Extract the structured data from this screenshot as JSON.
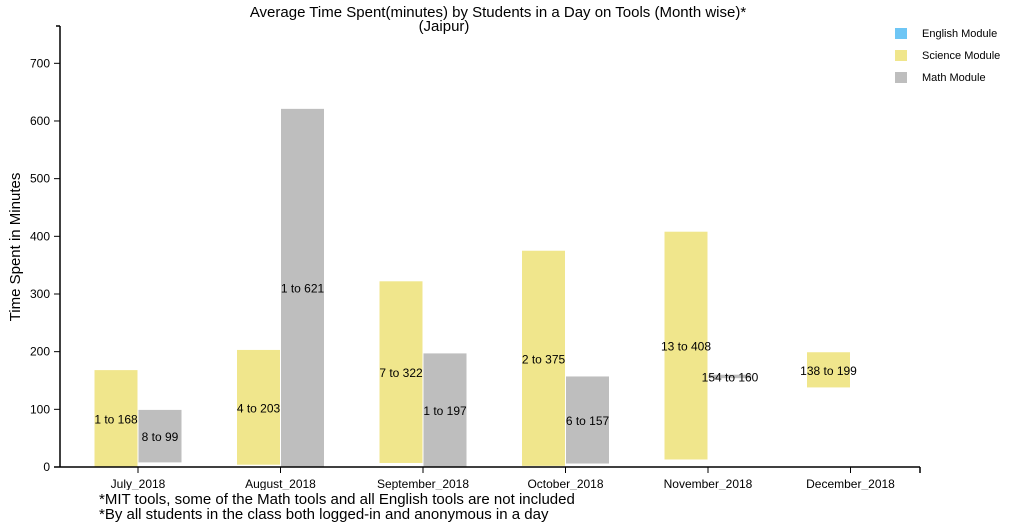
{
  "chart_data": {
    "type": "floating-bar",
    "title": "Average Time Spent(minutes) by Students in a Day on Tools (Month wise)*",
    "subtitle": "(Jaipur)",
    "ylabel": "Time Spent in Minutes",
    "xlabel": "",
    "ylim": [
      0,
      780
    ],
    "yticks": [
      0,
      100,
      200,
      300,
      400,
      500,
      600,
      700
    ],
    "grid": false,
    "legend_position": "top-right",
    "categories": [
      "July_2018",
      "August_2018",
      "September_2018",
      "October_2018",
      "November_2018",
      "December_2018"
    ],
    "series": [
      {
        "name": "English Module",
        "color": "#6ec6f5",
        "ranges": [
          null,
          null,
          null,
          null,
          null,
          null
        ],
        "labels": [
          null,
          null,
          null,
          null,
          null,
          null
        ]
      },
      {
        "name": "Science Module",
        "color": "#f0e68c",
        "ranges": [
          [
            1,
            168
          ],
          [
            4,
            203
          ],
          [
            7,
            322
          ],
          [
            2,
            375
          ],
          [
            13,
            408
          ],
          [
            138,
            199
          ]
        ],
        "labels": [
          "1 to 168",
          "4 to 203",
          "7 to 322",
          "2 to 375",
          "13 to 408",
          "138 to 199"
        ]
      },
      {
        "name": "Math Module",
        "color": "#bebebe",
        "ranges": [
          [
            8,
            99
          ],
          [
            1,
            621
          ],
          [
            1,
            197
          ],
          [
            6,
            157
          ],
          [
            154,
            160
          ],
          null
        ],
        "labels": [
          "8 to 99",
          "1 to 621",
          "1 to 197",
          "6 to 157",
          "154 to 160",
          null
        ]
      }
    ],
    "footnotes": [
      "*MIT tools, some of the Math tools and all English tools are not included",
      "*By all students in the class both logged-in and anonymous in a day"
    ]
  }
}
